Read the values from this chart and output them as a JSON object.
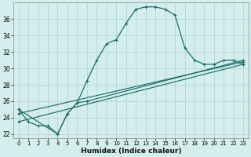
{
  "xlabel": "Humidex (Indice chaleur)",
  "bg_color": "#d4eeed",
  "grid_color": "#b8d8d8",
  "line_color": "#1e6b6b",
  "xlim": [
    -0.5,
    23.5
  ],
  "ylim": [
    21.5,
    38.0
  ],
  "yticks": [
    22,
    24,
    26,
    28,
    30,
    32,
    34,
    36
  ],
  "xticks": [
    0,
    1,
    2,
    3,
    4,
    5,
    6,
    7,
    8,
    9,
    10,
    11,
    12,
    13,
    14,
    15,
    16,
    17,
    18,
    19,
    20,
    21,
    22,
    23
  ],
  "main_x": [
    0,
    1,
    2,
    3,
    4,
    5,
    6,
    7,
    8,
    9,
    10,
    11,
    12,
    13,
    14,
    15,
    16,
    17,
    18,
    19,
    20,
    21,
    22,
    23
  ],
  "main_y": [
    25.0,
    23.5,
    23.0,
    23.0,
    22.0,
    24.5,
    25.8,
    28.5,
    31.0,
    33.0,
    33.5,
    35.5,
    37.2,
    37.5,
    37.5,
    37.2,
    36.5,
    32.5,
    31.0,
    30.5,
    30.5,
    31.0,
    31.0,
    30.5
  ],
  "line2_x": [
    0,
    4,
    5,
    6,
    7,
    23
  ],
  "line2_y": [
    25.0,
    22.0,
    24.5,
    25.8,
    26.0,
    31.0
  ],
  "line3_x": [
    0,
    23
  ],
  "line3_y": [
    23.5,
    30.5
  ],
  "line4_x": [
    0,
    23
  ],
  "line4_y": [
    24.5,
    30.8
  ]
}
